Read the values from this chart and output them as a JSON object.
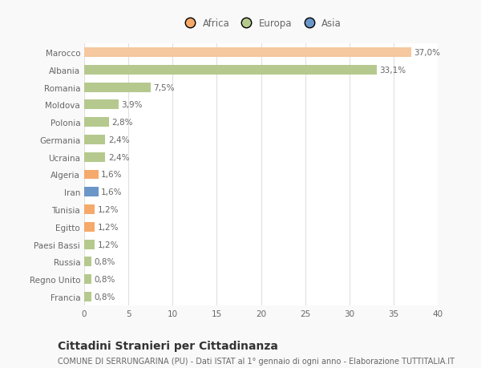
{
  "categories": [
    "Francia",
    "Regno Unito",
    "Russia",
    "Paesi Bassi",
    "Egitto",
    "Tunisia",
    "Iran",
    "Algeria",
    "Ucraina",
    "Germania",
    "Polonia",
    "Moldova",
    "Romania",
    "Albania",
    "Marocco"
  ],
  "values": [
    0.8,
    0.8,
    0.8,
    1.2,
    1.2,
    1.2,
    1.6,
    1.6,
    2.4,
    2.4,
    2.8,
    3.9,
    7.5,
    33.1,
    37.0
  ],
  "labels": [
    "0,8%",
    "0,8%",
    "0,8%",
    "1,2%",
    "1,2%",
    "1,2%",
    "1,6%",
    "1,6%",
    "2,4%",
    "2,4%",
    "2,8%",
    "3,9%",
    "7,5%",
    "33,1%",
    "37,0%"
  ],
  "colors": [
    "#b5c98e",
    "#b5c98e",
    "#b5c98e",
    "#b5c98e",
    "#f5a96b",
    "#f5a96b",
    "#6b96c8",
    "#f5a96b",
    "#b5c98e",
    "#b5c98e",
    "#b5c98e",
    "#b5c98e",
    "#b5c98e",
    "#b5c98e",
    "#f5c8a0"
  ],
  "legend_labels": [
    "Africa",
    "Europa",
    "Asia"
  ],
  "legend_colors": [
    "#f5a96b",
    "#b5c98e",
    "#6b96c8"
  ],
  "title": "Cittadini Stranieri per Cittadinanza",
  "subtitle": "COMUNE DI SERRUNGARINA (PU) - Dati ISTAT al 1° gennaio di ogni anno - Elaborazione TUTTITALIA.IT",
  "xlim": [
    0,
    40
  ],
  "xticks": [
    0,
    5,
    10,
    15,
    20,
    25,
    30,
    35,
    40
  ],
  "bg_color": "#f9f9f9",
  "plot_bg_color": "#ffffff",
  "grid_color": "#e0e0e0",
  "text_color": "#666666",
  "title_color": "#333333",
  "subtitle_color": "#666666",
  "title_fontsize": 10,
  "subtitle_fontsize": 7,
  "label_fontsize": 7.5,
  "tick_fontsize": 7.5,
  "legend_fontsize": 8.5,
  "bar_height": 0.55
}
